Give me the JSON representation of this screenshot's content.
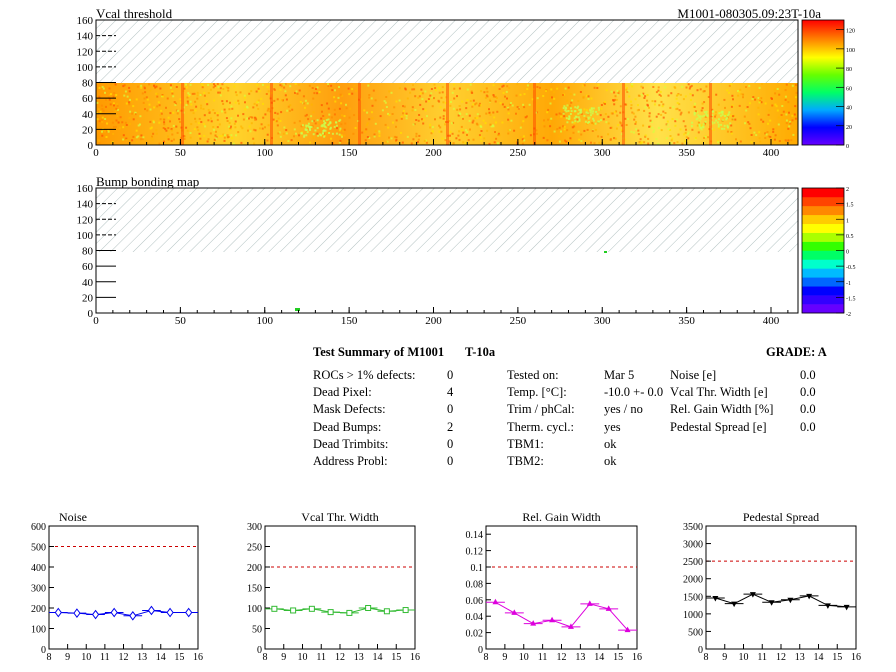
{
  "maps": [
    {
      "title": "Vcal threshold",
      "id_label": "M1001-080305.09:23T-10a",
      "x_ticks": [
        0,
        50,
        100,
        150,
        200,
        250,
        300,
        350,
        400
      ],
      "y_ticks": [
        0,
        20,
        40,
        60,
        80,
        100,
        120,
        140,
        160
      ],
      "color_ticks": [
        "0",
        "20",
        "40",
        "60",
        "80",
        "100",
        "120"
      ]
    },
    {
      "title": "Bump bonding map",
      "x_ticks": [
        0,
        50,
        100,
        150,
        200,
        250,
        300,
        350,
        400
      ],
      "y_ticks": [
        0,
        20,
        40,
        60,
        80,
        100,
        120,
        140,
        160
      ],
      "color_ticks": [
        "-2",
        "-1.5",
        "-1",
        "-0.5",
        "0",
        "0.5",
        "1",
        "1.5",
        "2"
      ]
    }
  ],
  "summary": {
    "title": "Test Summary of M1001",
    "test": "T-10a",
    "grade": "GRADE:  A",
    "col1": [
      {
        "label": "ROCs > 1% defects:",
        "value": "0"
      },
      {
        "label": "Dead Pixel:",
        "value": "4"
      },
      {
        "label": "Mask Defects:",
        "value": "0"
      },
      {
        "label": "Dead Bumps:",
        "value": "2"
      },
      {
        "label": "Dead Trimbits:",
        "value": "0"
      },
      {
        "label": "Address Probl:",
        "value": "0"
      }
    ],
    "col2": [
      {
        "label": "Tested on:",
        "value": "Mar 5"
      },
      {
        "label": "Temp. [°C]:",
        "value": "-10.0 +- 0.0"
      },
      {
        "label": "Trim / phCal:",
        "value": "yes / no"
      },
      {
        "label": "Therm. cycl.:",
        "value": "yes"
      },
      {
        "label": "TBM1:",
        "value": "ok"
      },
      {
        "label": "TBM2:",
        "value": "ok"
      }
    ],
    "col3": [
      {
        "label": "Noise [e]",
        "value": "0.0"
      },
      {
        "label": "Vcal Thr. Width [e]",
        "value": "0.0"
      },
      {
        "label": "Rel. Gain Width [%]",
        "value": "0.0"
      },
      {
        "label": "Pedestal Spread [e]",
        "value": "0.0"
      }
    ]
  },
  "chart_data": [
    {
      "type": "line",
      "title": "Noise",
      "color": "#0000ee",
      "marker": "diamond",
      "x": [
        8.5,
        9.5,
        10.5,
        11.5,
        12.5,
        13.5,
        14.5,
        15.5
      ],
      "y": [
        178,
        175,
        168,
        178,
        162,
        188,
        178,
        178
      ],
      "xlim": [
        8,
        16
      ],
      "ylim": [
        0,
        600
      ],
      "threshold": 500,
      "x_ticks": [
        8,
        9,
        10,
        11,
        12,
        13,
        14,
        15,
        16
      ],
      "y_ticks": [
        "0",
        "100",
        "200",
        "300",
        "400",
        "500",
        "600"
      ]
    },
    {
      "type": "line",
      "title": "Vcal Thr. Width",
      "color": "#33bb33",
      "marker": "square",
      "x": [
        8.5,
        9.5,
        10.5,
        11.5,
        12.5,
        13.5,
        14.5,
        15.5
      ],
      "y": [
        98,
        94,
        98,
        90,
        88,
        100,
        92,
        95
      ],
      "xlim": [
        8,
        16
      ],
      "ylim": [
        0,
        300
      ],
      "threshold": 200,
      "x_ticks": [
        8,
        9,
        10,
        11,
        12,
        13,
        14,
        15,
        16
      ],
      "y_ticks": [
        "0",
        "50",
        "100",
        "150",
        "200",
        "250",
        "300"
      ]
    },
    {
      "type": "line",
      "title": "Rel. Gain Width",
      "color": "#dd00dd",
      "marker": "triangle",
      "x": [
        8.5,
        9.5,
        10.5,
        11.5,
        12.5,
        13.5,
        14.5,
        15.5
      ],
      "y": [
        0.057,
        0.044,
        0.031,
        0.035,
        0.027,
        0.055,
        0.049,
        0.023
      ],
      "xlim": [
        8,
        16
      ],
      "ylim": [
        0,
        0.15
      ],
      "threshold": 0.1,
      "x_ticks": [
        8,
        9,
        10,
        11,
        12,
        13,
        14,
        15,
        16
      ],
      "y_ticks": [
        "0",
        "0.02",
        "0.04",
        "0.06",
        "0.08",
        "0.1",
        "0.12",
        "0.14"
      ]
    },
    {
      "type": "line",
      "title": "Pedestal Spread",
      "color": "#000000",
      "marker": "triangle-down",
      "x": [
        8.5,
        9.5,
        10.5,
        11.5,
        12.5,
        13.5,
        14.5,
        15.5
      ],
      "y": [
        1450,
        1290,
        1560,
        1330,
        1400,
        1510,
        1240,
        1200
      ],
      "xlim": [
        8,
        16
      ],
      "ylim": [
        0,
        3500
      ],
      "threshold": 2500,
      "x_ticks": [
        8,
        9,
        10,
        11,
        12,
        13,
        14,
        15,
        16
      ],
      "y_ticks": [
        "0",
        "500",
        "1000",
        "1500",
        "2000",
        "2500",
        "3000",
        "3500"
      ]
    }
  ]
}
